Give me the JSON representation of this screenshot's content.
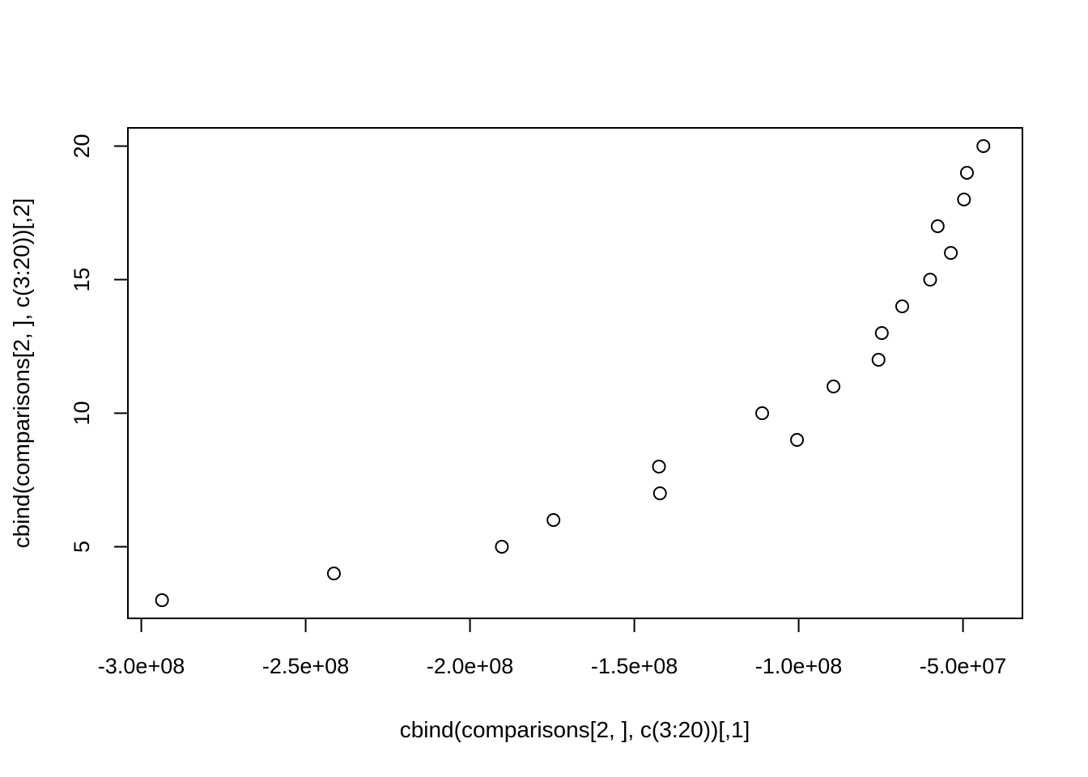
{
  "chart_data": {
    "type": "scatter",
    "title": "",
    "xlabel": "cbind(comparisons[2, ], c(3:20))[,1]",
    "ylabel": "cbind(comparisons[2, ], c(3:20))[,2]",
    "xlim": [
      -294000000,
      -42000000
    ],
    "ylim": [
      3,
      20
    ],
    "x_ticks": [
      -300000000,
      -250000000,
      -200000000,
      -150000000,
      -100000000,
      -50000000
    ],
    "x_tick_labels": [
      "-3.0e+08",
      "-2.5e+08",
      "-2.0e+08",
      "-1.5e+08",
      "-1.0e+08",
      "-5.0e+07"
    ],
    "y_ticks": [
      5,
      10,
      15,
      20
    ],
    "y_tick_labels": [
      "5",
      "10",
      "15",
      "20"
    ],
    "grid": false,
    "marker": "open-circle",
    "points": [
      {
        "x": -293700000,
        "y": 3
      },
      {
        "x": -241400000,
        "y": 4
      },
      {
        "x": -190300000,
        "y": 5
      },
      {
        "x": -174600000,
        "y": 6
      },
      {
        "x": -142200000,
        "y": 7
      },
      {
        "x": -142500000,
        "y": 8
      },
      {
        "x": -100500000,
        "y": 9
      },
      {
        "x": -111100000,
        "y": 10
      },
      {
        "x": -89400000,
        "y": 11
      },
      {
        "x": -75700000,
        "y": 12
      },
      {
        "x": -74700000,
        "y": 13
      },
      {
        "x": -68500000,
        "y": 14
      },
      {
        "x": -60000000,
        "y": 15
      },
      {
        "x": -53700000,
        "y": 16
      },
      {
        "x": -57700000,
        "y": 17
      },
      {
        "x": -49700000,
        "y": 18
      },
      {
        "x": -48800000,
        "y": 19
      },
      {
        "x": -43800000,
        "y": 20
      }
    ]
  }
}
